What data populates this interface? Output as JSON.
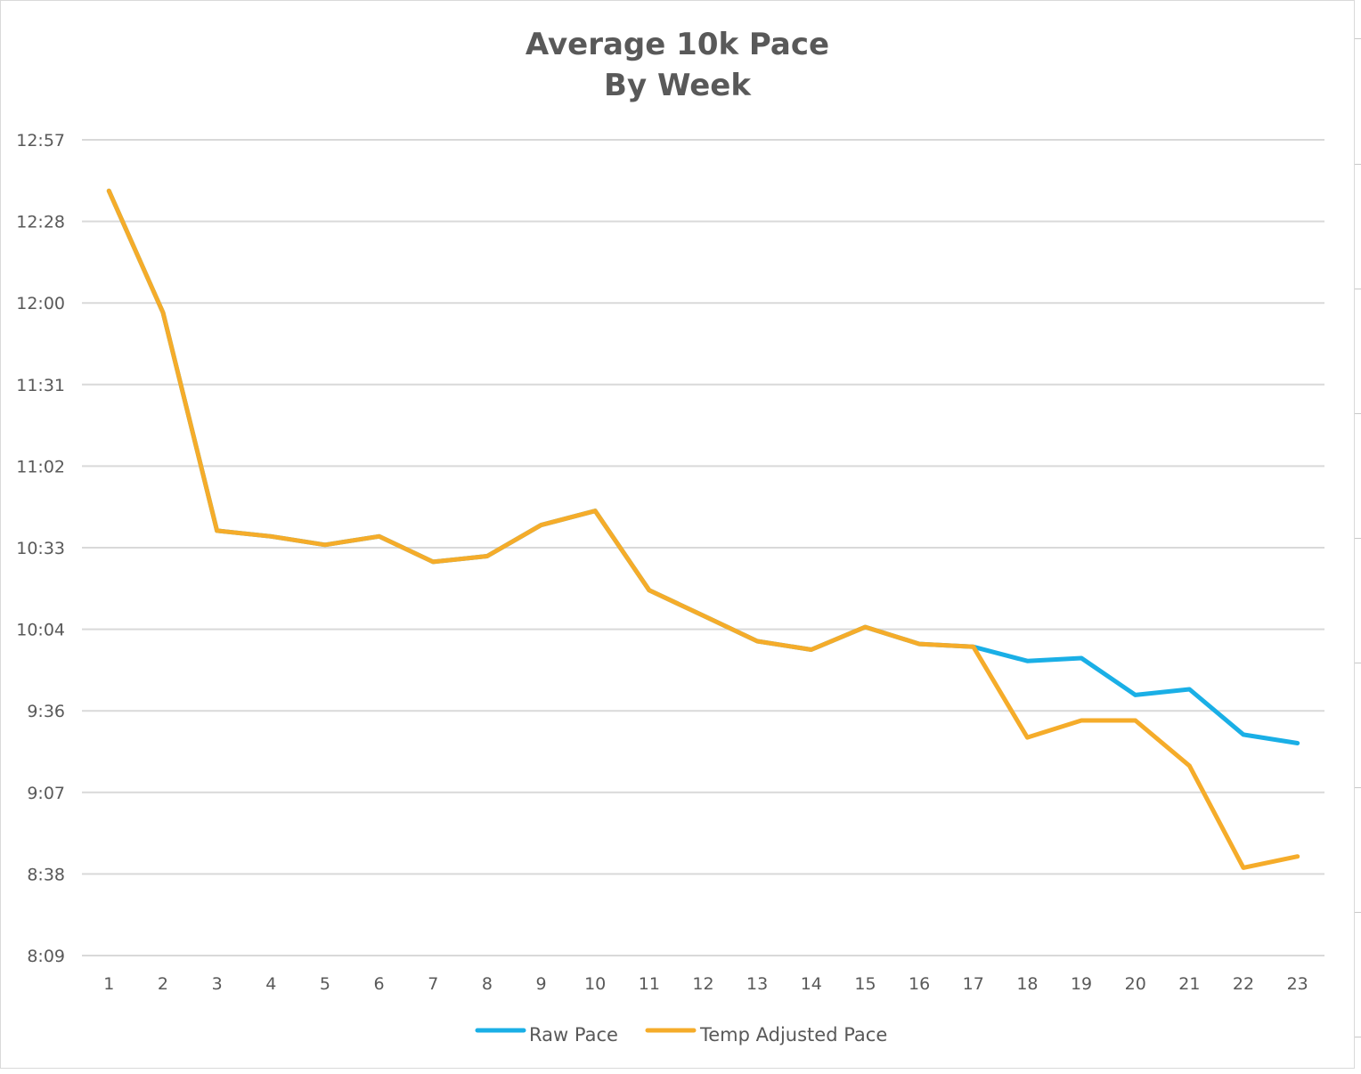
{
  "chart_data": {
    "type": "line",
    "title_line1": "Average 10k Pace",
    "title_line2": "By Week",
    "xlabel": "",
    "ylabel": "",
    "categories": [
      "1",
      "2",
      "3",
      "4",
      "5",
      "6",
      "7",
      "8",
      "9",
      "10",
      "11",
      "12",
      "13",
      "14",
      "15",
      "16",
      "17",
      "18",
      "19",
      "20",
      "21",
      "22",
      "23"
    ],
    "y_ticks": [
      "12:57",
      "12:28",
      "12:00",
      "11:31",
      "11:02",
      "10:33",
      "10:04",
      "9:36",
      "9:07",
      "8:38",
      "8:09"
    ],
    "ylim_seconds": [
      489,
      777
    ],
    "grid": true,
    "legend_position": "bottom",
    "series": [
      {
        "name": "Raw Pace",
        "color": "#1aafe6",
        "values_seconds": [
          759,
          716,
          639,
          637,
          634,
          637,
          628,
          630,
          641,
          646,
          618,
          609,
          600,
          597,
          605,
          599,
          598,
          593,
          594,
          581,
          583,
          567,
          564
        ]
      },
      {
        "name": "Temp Adjusted Pace",
        "color": "#f5ac2a",
        "values_seconds": [
          759,
          716,
          639,
          637,
          634,
          637,
          628,
          630,
          641,
          646,
          618,
          609,
          600,
          597,
          605,
          599,
          598,
          566,
          572,
          572,
          556,
          520,
          524
        ]
      }
    ]
  }
}
